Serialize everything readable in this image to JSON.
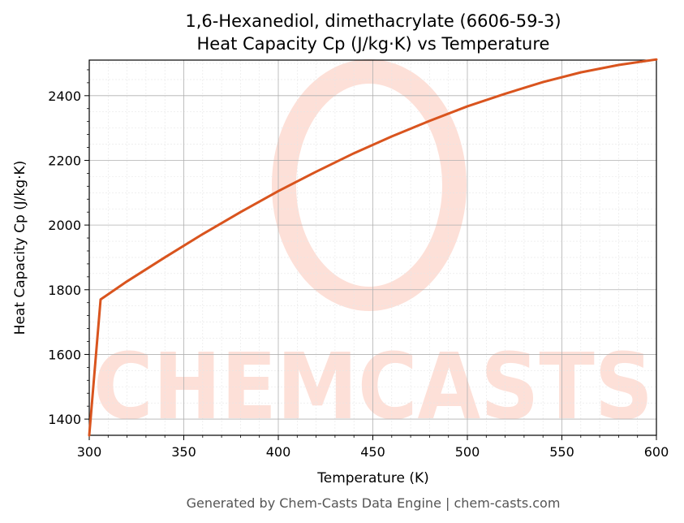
{
  "chart_data": {
    "type": "line",
    "title": "1,6-Hexanediol, dimethacrylate (6606-59-3)",
    "subtitle": "Heat Capacity Cp (J/kg·K) vs Temperature",
    "xlabel": "Temperature (K)",
    "ylabel": "Heat Capacity Cp (J/kg·K)",
    "xlim": [
      300,
      600
    ],
    "ylim": [
      1350,
      2510
    ],
    "x_ticks": [
      300,
      350,
      400,
      450,
      500,
      550,
      600
    ],
    "y_ticks": [
      1400,
      1600,
      1800,
      2000,
      2200,
      2400
    ],
    "grid": true,
    "series": [
      {
        "color": "#d9541e",
        "x": [
          300,
          306,
          320,
          340,
          360,
          380,
          400,
          420,
          440,
          460,
          480,
          500,
          520,
          540,
          560,
          580,
          600
        ],
        "y": [
          1350,
          1770,
          1826,
          1900,
          1972,
          2040,
          2105,
          2165,
          2222,
          2274,
          2322,
          2367,
          2406,
          2442,
          2472,
          2495,
          2512
        ]
      }
    ]
  },
  "watermark": {
    "text": "CHEMCASTS",
    "color": "#fde0d8"
  },
  "footer": "Generated by Chem-Casts Data Engine | chem-casts.com"
}
